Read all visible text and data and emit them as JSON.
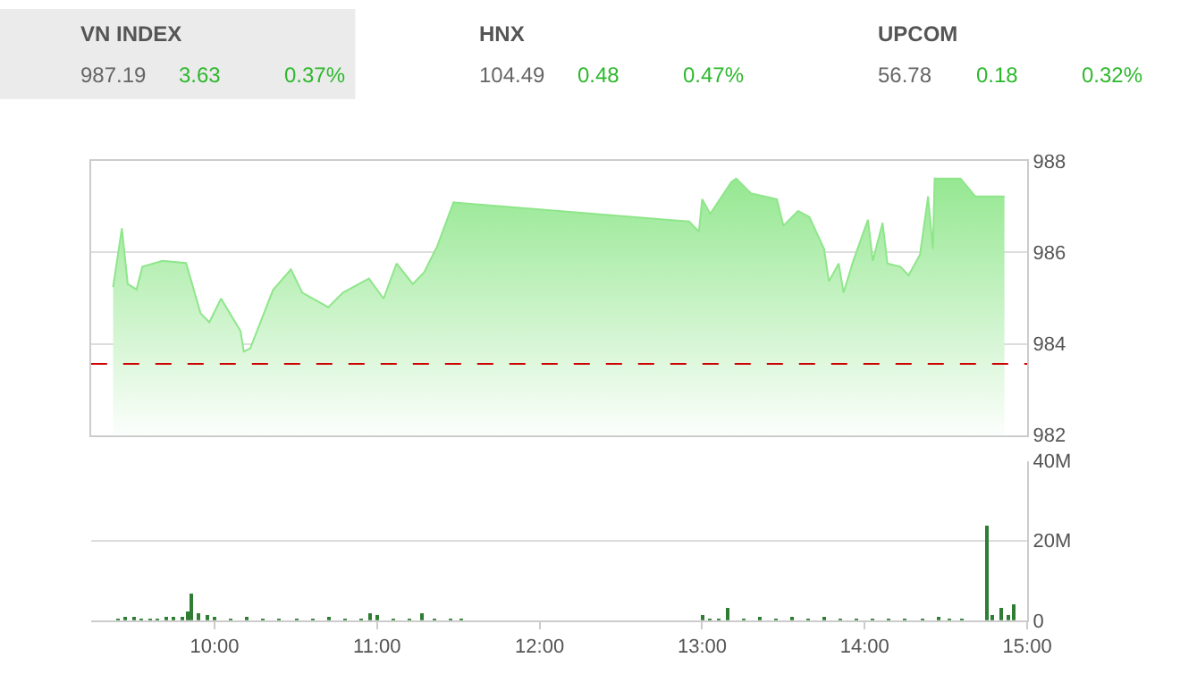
{
  "chart_data": [
    {
      "type": "other",
      "annotations": [
        "VN INDEX",
        "987.19",
        "3.63",
        "0.37%",
        "HNX",
        "104.49",
        "0.48",
        "0.47%",
        "UPCOM",
        "56.78",
        "0.18",
        "0.32%"
      ]
    },
    {
      "type": "area",
      "x": [
        9.376,
        9.43,
        9.466,
        9.52,
        9.556,
        9.68,
        9.825,
        9.914,
        9.968,
        10.04,
        10.16,
        10.18,
        10.22,
        10.36,
        10.47,
        10.54,
        10.7,
        10.79,
        10.95,
        11.04,
        11.12,
        11.22,
        11.29,
        11.37,
        11.47,
        12.92,
        12.98,
        13.0,
        13.05,
        13.18,
        13.21,
        13.3,
        13.46,
        13.5,
        13.59,
        13.66,
        13.75,
        13.78,
        13.84,
        13.87,
        13.93,
        14.02,
        14.05,
        14.11,
        14.14,
        14.22,
        14.27,
        14.34,
        14.39,
        14.42,
        14.43,
        14.59,
        14.68,
        14.86
      ],
      "series": [
        {
          "color": "#8ee68a",
          "values": [
            985.24,
            986.53,
            985.31,
            985.19,
            985.69,
            985.82,
            985.77,
            984.67,
            984.47,
            984.99,
            984.28,
            983.83,
            983.9,
            985.18,
            985.63,
            985.12,
            984.8,
            985.12,
            985.43,
            984.99,
            985.76,
            985.31,
            985.57,
            986.14,
            987.1,
            986.68,
            986.46,
            987.17,
            986.85,
            987.55,
            987.62,
            987.3,
            987.17,
            986.59,
            986.91,
            986.78,
            986.08,
            985.37,
            985.76,
            985.12,
            985.82,
            986.72,
            985.82,
            986.65,
            985.76,
            985.69,
            985.5,
            985.95,
            987.23,
            986.08,
            987.62,
            987.62,
            987.23,
            987.23
          ]
        }
      ],
      "xlim": [
        9.24,
        15.0
      ],
      "ylim": [
        982,
        988
      ],
      "yticks": [
        982,
        984,
        986,
        988
      ],
      "grid": "y",
      "tick_labels": "y",
      "ref_lines": [
        {
          "axis": "y",
          "value": 983.56,
          "color": "#cc0000",
          "line_style": "dashed"
        }
      ]
    },
    {
      "type": "bar",
      "x": [
        9.4,
        9.45,
        9.5,
        9.55,
        9.6,
        9.65,
        9.7,
        9.75,
        9.8,
        9.83,
        9.86,
        9.9,
        9.95,
        10.0,
        10.1,
        10.2,
        10.3,
        10.4,
        10.5,
        10.6,
        10.7,
        10.8,
        10.9,
        10.96,
        11.0,
        11.1,
        11.2,
        11.28,
        11.35,
        11.45,
        11.52,
        13.0,
        13.05,
        13.1,
        13.16,
        13.25,
        13.35,
        13.45,
        13.55,
        13.65,
        13.75,
        13.85,
        13.95,
        14.05,
        14.15,
        14.25,
        14.35,
        14.45,
        14.52,
        14.6,
        14.75,
        14.78,
        14.84,
        14.88,
        14.92
      ],
      "series": [
        {
          "color": "#2e7d32",
          "values": [
            0.6,
            0.9,
            0.8,
            0.5,
            0.7,
            0.6,
            0.9,
            0.8,
            1.0,
            2.5,
            7.0,
            1.8,
            1.2,
            1.0,
            0.6,
            0.8,
            0.5,
            0.7,
            0.6,
            0.5,
            0.8,
            0.5,
            0.7,
            2.0,
            1.5,
            0.5,
            0.4,
            1.7,
            0.5,
            0.5,
            0.4,
            1.5,
            0.4,
            0.6,
            3.0,
            0.7,
            0.9,
            0.6,
            1.0,
            0.7,
            0.8,
            0.6,
            0.7,
            0.6,
            0.7,
            0.6,
            0.7,
            0.8,
            0.7,
            0.3,
            23.8,
            1.2,
            3.0,
            1.2,
            4.3
          ]
        }
      ],
      "xlim": [
        9.24,
        15.0
      ],
      "xticks": [
        {
          "value": 10,
          "label": "10:00"
        },
        {
          "value": 11,
          "label": "11:00"
        },
        {
          "value": 12,
          "label": "12:00"
        },
        {
          "value": 13,
          "label": "13:00"
        },
        {
          "value": 14,
          "label": "14:00"
        },
        {
          "value": 15,
          "label": "15:00"
        }
      ],
      "ylim": [
        0,
        40
      ],
      "yticks": [
        0,
        {
          "value": 20,
          "label": "20M"
        },
        {
          "value": 40,
          "label": "40M"
        }
      ],
      "grid": "y"
    }
  ]
}
